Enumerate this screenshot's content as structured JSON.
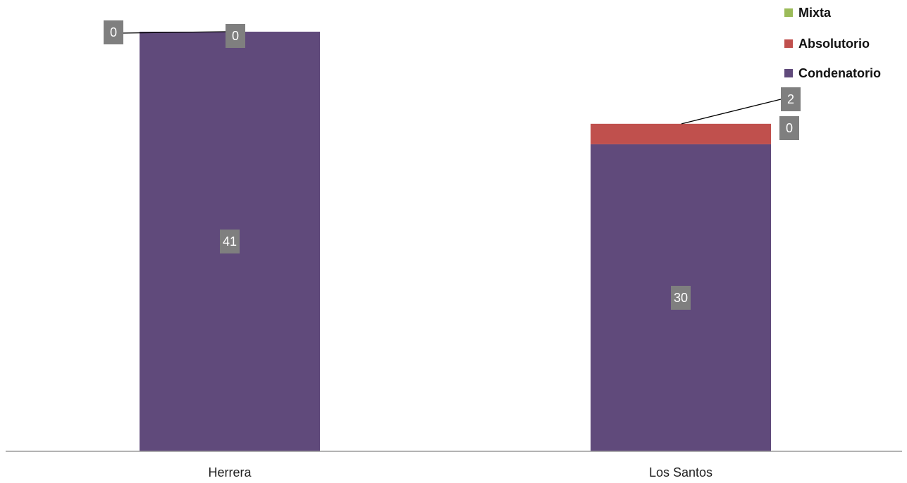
{
  "chart_data": {
    "type": "bar",
    "stacked": true,
    "categories": [
      "Herrera",
      "Los Santos"
    ],
    "series": [
      {
        "name": "Condenatorio",
        "values": [
          41,
          30
        ],
        "color": "#604A7B"
      },
      {
        "name": "Absolutorio",
        "values": [
          0,
          2
        ],
        "color": "#C0504D"
      },
      {
        "name": "Mixta",
        "values": [
          0,
          0
        ],
        "color": "#9BBB59"
      }
    ],
    "ylim": [
      0,
      41
    ],
    "grid": false,
    "legend": {
      "position": "top-right",
      "order": [
        "Mixta",
        "Absolutorio",
        "Condenatorio"
      ]
    },
    "data_label_color": "#7F7F7F"
  }
}
